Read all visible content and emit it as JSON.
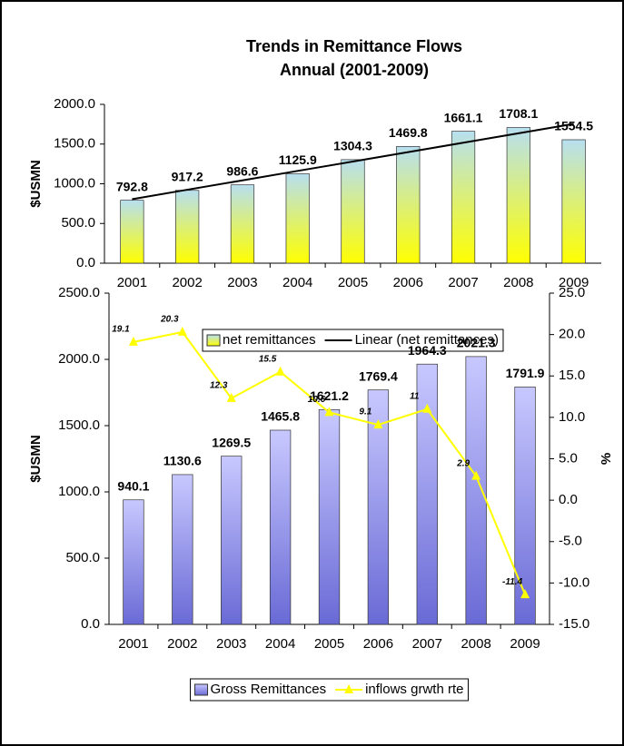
{
  "chart_data": [
    {
      "type": "bar",
      "title": "Trends in Remittance Flows",
      "subtitle": "Annual  (2001-2009)",
      "y_label": "$USMN",
      "categories": [
        "2001",
        "2002",
        "2003",
        "2004",
        "2005",
        "2006",
        "2007",
        "2008",
        "2009"
      ],
      "series": [
        {
          "name": "net remittances",
          "gradient": [
            "#ffff00",
            "#b7dff0"
          ],
          "values": [
            792.8,
            917.2,
            986.6,
            1125.9,
            1304.3,
            1469.8,
            1661.1,
            1708.1,
            1554.5
          ]
        },
        {
          "name": "Linear (net remittances)",
          "type": "line",
          "color": "#000000",
          "values": [
            806,
            925,
            1043,
            1162,
            1280,
            1399,
            1517,
            1636,
            1754
          ]
        }
      ],
      "ylim": [
        0,
        2000
      ],
      "yticks": [
        {
          "value": 0,
          "label": "0.0"
        },
        {
          "value": 500,
          "label": "500.0"
        },
        {
          "value": 1000,
          "label": "1000.0"
        },
        {
          "value": 1500,
          "label": "1500.0"
        },
        {
          "value": 2000,
          "label": "2000.0"
        }
      ]
    },
    {
      "type": "bar",
      "y_label": "$USMN",
      "y2_label": "%",
      "categories": [
        "2001",
        "2002",
        "2003",
        "2004",
        "2005",
        "2006",
        "2007",
        "2008",
        "2009"
      ],
      "series": [
        {
          "name": "Gross Remittances",
          "gradient": [
            "#6a6ad6",
            "#c8c8ff"
          ],
          "values": [
            940.1,
            1130.6,
            1269.5,
            1465.8,
            1621.2,
            1769.4,
            1964.3,
            2021.3,
            1791.9
          ]
        },
        {
          "name": "inflows grwth rte",
          "type": "line",
          "axis": "y2",
          "color": "#ffff00",
          "values": [
            19.1,
            20.3,
            12.3,
            15.5,
            10.6,
            9.1,
            11.0,
            2.9,
            -11.4
          ]
        }
      ],
      "ylim": [
        0,
        2500
      ],
      "yticks": [
        {
          "value": 0,
          "label": "0.0"
        },
        {
          "value": 500,
          "label": "500.0"
        },
        {
          "value": 1000,
          "label": "1000.0"
        },
        {
          "value": 1500,
          "label": "1500.0"
        },
        {
          "value": 2000,
          "label": "2000.0"
        },
        {
          "value": 2500,
          "label": "2500.0"
        }
      ],
      "y2lim": [
        -15,
        25
      ],
      "y2ticks": [
        {
          "value": -15,
          "label": "-15.0"
        },
        {
          "value": -10,
          "label": "-10.0"
        },
        {
          "value": -5,
          "label": "-5.0"
        },
        {
          "value": 0,
          "label": "0.0"
        },
        {
          "value": 5,
          "label": "5.0"
        },
        {
          "value": 10,
          "label": "10.0"
        },
        {
          "value": 15,
          "label": "15.0"
        },
        {
          "value": 20,
          "label": "20.0"
        },
        {
          "value": 25,
          "label": "25.0"
        }
      ]
    }
  ]
}
